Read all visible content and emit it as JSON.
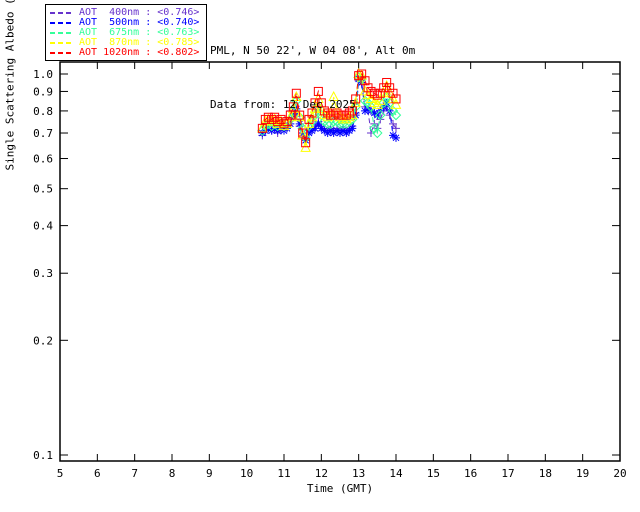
{
  "header": {
    "location_line": "PML, N 50 22', W 04 08', Alt 0m",
    "data_line": "Data from: 12 Dec 2025"
  },
  "legend": {
    "entries": [
      {
        "label": "AOT  400nm : <0.746>",
        "wavelength": "400nm",
        "mean": 0.746,
        "color": "#6633CC"
      },
      {
        "label": "AOT  500nm : <0.740>",
        "wavelength": "500nm",
        "mean": 0.74,
        "color": "#0000FF"
      },
      {
        "label": "AOT  675nm : <0.763>",
        "wavelength": "675nm",
        "mean": 0.763,
        "color": "#33FF99"
      },
      {
        "label": "AOT  870nm : <0.785>",
        "wavelength": "870nm",
        "mean": 0.785,
        "color": "#FFFF00"
      },
      {
        "label": "AOT 1020nm : <0.802>",
        "wavelength": "1020nm",
        "mean": 0.802,
        "color": "#FF0000"
      }
    ]
  },
  "chart_data": {
    "type": "line",
    "title": "",
    "xlabel": "Time (GMT)",
    "ylabel": "Single Scattering Albedo (ω~)",
    "xlim": [
      5,
      20
    ],
    "ylim": [
      0.1,
      1.0
    ],
    "yscale": "log",
    "grid": false,
    "line_style": "dashed",
    "x_ticks": [
      5,
      6,
      7,
      8,
      9,
      10,
      11,
      12,
      13,
      14,
      15,
      16,
      17,
      18,
      19,
      20
    ],
    "y_ticks": [
      1.0,
      0.9,
      0.8,
      0.7,
      0.6,
      0.5,
      0.4,
      0.3,
      0.2,
      0.1
    ],
    "x": [
      10.42,
      10.5,
      10.58,
      10.67,
      10.75,
      10.83,
      10.92,
      11.0,
      11.08,
      11.17,
      11.25,
      11.33,
      11.42,
      11.5,
      11.58,
      11.67,
      11.75,
      11.83,
      11.92,
      12.0,
      12.08,
      12.17,
      12.25,
      12.33,
      12.42,
      12.5,
      12.58,
      12.67,
      12.75,
      12.83,
      12.92,
      13.0,
      13.08,
      13.17,
      13.25,
      13.33,
      13.42,
      13.5,
      13.58,
      13.67,
      13.75,
      13.83,
      13.92,
      14.0
    ],
    "series": [
      {
        "name": "AOT 400nm",
        "color": "#6633CC",
        "marker": "plus",
        "values": [
          0.69,
          0.71,
          0.72,
          0.71,
          0.72,
          0.7,
          0.71,
          0.72,
          0.73,
          0.8,
          0.77,
          0.8,
          0.73,
          0.69,
          0.67,
          0.71,
          0.72,
          0.73,
          0.75,
          0.73,
          0.72,
          0.71,
          0.72,
          0.71,
          0.72,
          0.71,
          0.72,
          0.71,
          0.72,
          0.73,
          0.79,
          0.96,
          0.94,
          0.82,
          0.8,
          0.7,
          0.74,
          0.72,
          0.76,
          0.8,
          0.82,
          0.78,
          0.74,
          0.72
        ]
      },
      {
        "name": "AOT 500nm",
        "color": "#0000FF",
        "marker": "asterisk",
        "values": [
          0.7,
          0.71,
          0.72,
          0.71,
          0.72,
          0.71,
          0.72,
          0.71,
          0.72,
          0.74,
          0.78,
          0.81,
          0.74,
          0.7,
          0.67,
          0.7,
          0.71,
          0.72,
          0.74,
          0.72,
          0.71,
          0.7,
          0.71,
          0.7,
          0.71,
          0.7,
          0.71,
          0.7,
          0.71,
          0.72,
          0.78,
          0.97,
          0.95,
          0.8,
          0.81,
          0.8,
          0.79,
          0.78,
          0.8,
          0.82,
          0.84,
          0.8,
          0.69,
          0.68
        ]
      },
      {
        "name": "AOT 675nm",
        "color": "#33FF99",
        "marker": "diamond",
        "values": [
          0.71,
          0.73,
          0.74,
          0.73,
          0.74,
          0.73,
          0.74,
          0.73,
          0.74,
          0.76,
          0.8,
          0.85,
          0.77,
          0.72,
          0.68,
          0.73,
          0.75,
          0.78,
          0.82,
          0.78,
          0.75,
          0.74,
          0.74,
          0.75,
          0.75,
          0.74,
          0.74,
          0.74,
          0.75,
          0.76,
          0.82,
          0.98,
          0.97,
          0.85,
          0.84,
          0.82,
          0.72,
          0.7,
          0.78,
          0.84,
          0.87,
          0.84,
          0.8,
          0.78
        ]
      },
      {
        "name": "AOT 870nm",
        "color": "#FFFF00",
        "marker": "triangle",
        "values": [
          0.72,
          0.75,
          0.76,
          0.75,
          0.76,
          0.74,
          0.75,
          0.73,
          0.74,
          0.77,
          0.81,
          0.87,
          0.77,
          0.69,
          0.64,
          0.74,
          0.77,
          0.81,
          0.86,
          0.81,
          0.78,
          0.77,
          0.79,
          0.87,
          0.8,
          0.77,
          0.76,
          0.76,
          0.77,
          0.78,
          0.84,
          1.0,
          0.99,
          0.9,
          0.88,
          0.86,
          0.84,
          0.83,
          0.85,
          0.89,
          0.93,
          0.89,
          0.86,
          0.83
        ]
      },
      {
        "name": "AOT 1020nm",
        "color": "#FF0000",
        "marker": "square",
        "values": [
          0.72,
          0.76,
          0.77,
          0.76,
          0.77,
          0.75,
          0.76,
          0.74,
          0.75,
          0.78,
          0.82,
          0.89,
          0.78,
          0.7,
          0.66,
          0.76,
          0.79,
          0.84,
          0.9,
          0.84,
          0.8,
          0.79,
          0.78,
          0.78,
          0.79,
          0.78,
          0.78,
          0.78,
          0.79,
          0.8,
          0.86,
          0.99,
          1.0,
          0.96,
          0.92,
          0.9,
          0.89,
          0.88,
          0.89,
          0.92,
          0.95,
          0.92,
          0.89,
          0.86
        ]
      }
    ]
  }
}
